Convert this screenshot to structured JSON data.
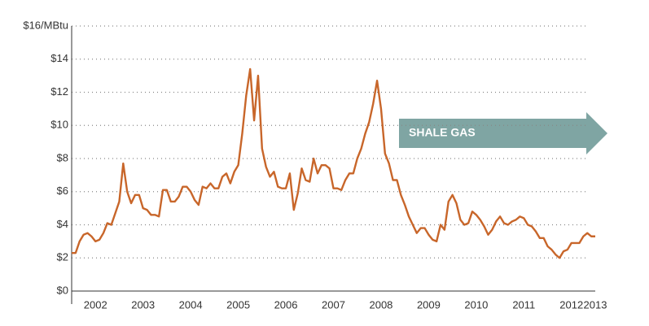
{
  "chart_data": {
    "type": "line",
    "annotation": "SHALE GAS",
    "categories": [
      null,
      null,
      null,
      null,
      null,
      null,
      "2002",
      null,
      null,
      null,
      null,
      null,
      null,
      null,
      null,
      null,
      null,
      null,
      "2003",
      null,
      null,
      null,
      null,
      null,
      null,
      null,
      null,
      null,
      null,
      null,
      "2004",
      null,
      null,
      null,
      null,
      null,
      null,
      null,
      null,
      null,
      null,
      null,
      "2005",
      null,
      null,
      null,
      null,
      null,
      null,
      null,
      null,
      null,
      null,
      null,
      "2006",
      null,
      null,
      null,
      null,
      null,
      null,
      null,
      null,
      null,
      null,
      null,
      "2007",
      null,
      null,
      null,
      null,
      null,
      null,
      null,
      null,
      null,
      null,
      null,
      "2008",
      null,
      null,
      null,
      null,
      null,
      null,
      null,
      null,
      null,
      null,
      null,
      "2009",
      null,
      null,
      null,
      null,
      null,
      null,
      null,
      null,
      null,
      null,
      null,
      "2010",
      null,
      null,
      null,
      null,
      null,
      null,
      null,
      null,
      null,
      null,
      null,
      "2011",
      null,
      null,
      null,
      null,
      null,
      null,
      null,
      null,
      null,
      null,
      null,
      "2012",
      null,
      null,
      null,
      null,
      null,
      "2013"
    ],
    "series": [
      {
        "color": "#c8662a",
        "values": [
          2.3,
          2.3,
          3.0,
          3.4,
          3.5,
          3.3,
          3.0,
          3.1,
          3.5,
          4.1,
          4.0,
          4.7,
          5.4,
          7.7,
          6.0,
          5.3,
          5.8,
          5.8,
          5.0,
          4.9,
          4.6,
          4.6,
          4.5,
          6.1,
          6.1,
          5.4,
          5.4,
          5.7,
          6.3,
          6.3,
          6.0,
          5.5,
          5.2,
          6.3,
          6.2,
          6.5,
          6.2,
          6.2,
          6.9,
          7.1,
          6.5,
          7.2,
          7.6,
          9.5,
          11.8,
          13.4,
          10.3,
          13.0,
          8.6,
          7.5,
          6.9,
          7.2,
          6.3,
          6.2,
          6.2,
          7.1,
          4.9,
          5.9,
          7.4,
          6.7,
          6.6,
          8.0,
          7.1,
          7.6,
          7.6,
          7.4,
          6.2,
          6.2,
          6.1,
          6.7,
          7.1,
          7.1,
          8.0,
          8.6,
          9.5,
          10.2,
          11.3,
          12.7,
          11.0,
          8.3,
          7.7,
          6.7,
          6.7,
          5.8,
          5.2,
          4.5,
          4.0,
          3.5,
          3.8,
          3.8,
          3.4,
          3.1,
          3.0,
          4.0,
          3.7,
          5.4,
          5.8,
          5.3,
          4.3,
          4.0,
          4.1,
          4.8,
          4.6,
          4.3,
          3.9,
          3.4,
          3.7,
          4.2,
          4.5,
          4.1,
          4.0,
          4.2,
          4.3,
          4.5,
          4.4,
          4.0,
          3.9,
          3.6,
          3.2,
          3.2,
          2.7,
          2.5,
          2.2,
          2.0,
          2.4,
          2.5,
          2.9,
          2.9,
          2.9,
          3.3,
          3.5,
          3.3,
          3.3
        ]
      }
    ],
    "ylim": [
      0,
      16
    ],
    "yticks": [
      {
        "value": 0,
        "label": "$0"
      },
      {
        "value": 2,
        "label": "$2"
      },
      {
        "value": 4,
        "label": "$4"
      },
      {
        "value": 6,
        "label": "$6"
      },
      {
        "value": 8,
        "label": "$8"
      },
      {
        "value": 10,
        "label": "$10"
      },
      {
        "value": 12,
        "label": "$12"
      },
      {
        "value": 14,
        "label": "$14"
      },
      {
        "value": 16,
        "label": "$16/MBtu"
      }
    ],
    "grid": true,
    "annotation_color": "#7fa5a3"
  }
}
